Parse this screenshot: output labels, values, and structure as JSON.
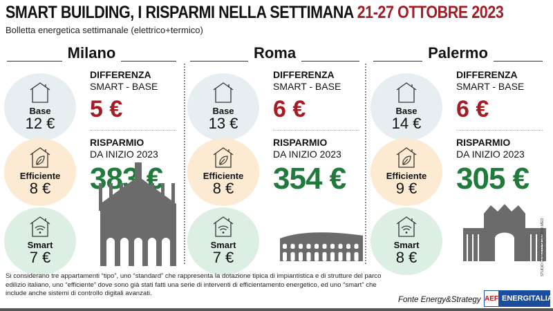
{
  "title": "SMART BUILDING, I RISPARMI NELLA SETTIMANA",
  "title_date": "21-27 OTTOBRE 2023",
  "subtitle": "Bolletta energetica settimanale (elettrico+termico)",
  "labels": {
    "diff1": "DIFFERENZA",
    "diff2": "SMART - BASE",
    "sav1": "RISPARMIO",
    "sav2": "DA INIZIO 2023",
    "base": "Base",
    "eff": "Efficiente",
    "smart": "Smart"
  },
  "cities": [
    {
      "name": "Milano",
      "base": "12 €",
      "eff": "8 €",
      "smart": "7 €",
      "diff": "5 €",
      "saving": "383 €",
      "landmark": "duomo-icon"
    },
    {
      "name": "Roma",
      "base": "13 €",
      "eff": "8 €",
      "smart": "7 €",
      "diff": "6 €",
      "saving": "354 €",
      "landmark": "colosseum-icon"
    },
    {
      "name": "Palermo",
      "base": "14 €",
      "eff": "9 €",
      "smart": "8 €",
      "diff": "6 €",
      "saving": "305 €",
      "landmark": "teatro-politeama-icon"
    }
  ],
  "colors": {
    "red": "#a31d24",
    "green": "#1f7a3c",
    "base": "#e7eef2",
    "efficiente": "#fcebd2",
    "smart": "#ddefe3"
  },
  "note": "Si considerano tre appartamenti “tipo”, uno “standard” che rappresenta la dotazione tipica di impiantistica e di strutture del parco edilizio italiano, uno “efficiente” dove sono già stati fatti una serie di interventi di efficientamento energetico, ed uno “smart” che include anche sistemi di controllo digitali avanzati.",
  "source": "Fonte Energy&Strategy",
  "logo": {
    "mark": "AEF",
    "text": "ENERGITALIA"
  },
  "credit": "STUDIO GRAFICO SILVANO DI MEO"
}
